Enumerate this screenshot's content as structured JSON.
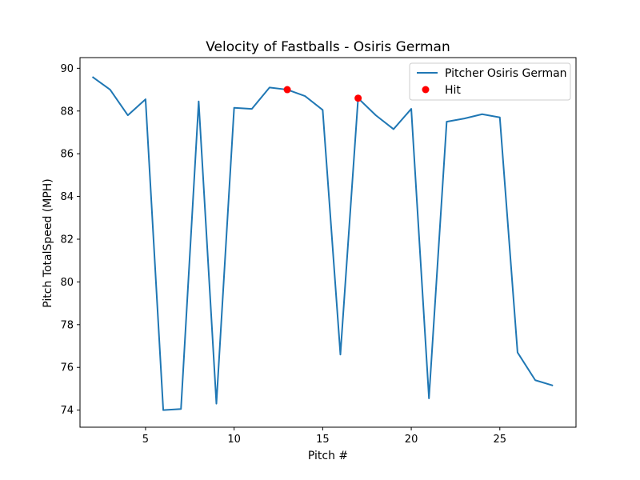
{
  "chart_data": {
    "type": "line",
    "title": "Velocity of Fastballs - Osiris German",
    "xlabel": "Pitch #",
    "ylabel": "Pitch TotalSpeed (MPH)",
    "xlim": [
      1.3,
      29.3
    ],
    "ylim": [
      73.2,
      90.5
    ],
    "x_ticks": [
      5,
      10,
      15,
      20,
      25
    ],
    "y_ticks": [
      74,
      76,
      78,
      80,
      82,
      84,
      86,
      88,
      90
    ],
    "grid": false,
    "legend_position": "top-right",
    "series": [
      {
        "name": "Pitcher Osiris German",
        "kind": "line",
        "color": "#1f77b4",
        "x": [
          2,
          3,
          4,
          5,
          6,
          7,
          8,
          9,
          10,
          11,
          12,
          13,
          14,
          15,
          16,
          17,
          18,
          19,
          20,
          21,
          22,
          23,
          24,
          25,
          26,
          27,
          28
        ],
        "y": [
          89.6,
          89.0,
          87.8,
          88.55,
          74.0,
          74.05,
          88.45,
          74.3,
          88.15,
          88.1,
          89.1,
          89.0,
          88.7,
          88.05,
          76.6,
          88.6,
          87.8,
          87.15,
          88.1,
          74.55,
          87.5,
          87.65,
          87.85,
          87.7,
          76.7,
          75.4,
          75.15
        ]
      },
      {
        "name": "Hit",
        "kind": "scatter",
        "color": "#ff0000",
        "x": [
          13,
          17
        ],
        "y": [
          89.0,
          88.6
        ]
      }
    ]
  }
}
